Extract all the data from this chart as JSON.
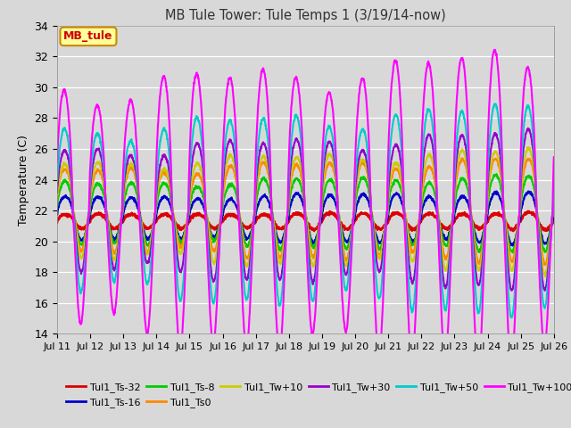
{
  "title": "MB Tule Tower: Tule Temps 1 (3/19/14-now)",
  "ylabel": "Temperature (C)",
  "ylim": [
    14,
    34
  ],
  "yticks": [
    14,
    16,
    18,
    20,
    22,
    24,
    26,
    28,
    30,
    32,
    34
  ],
  "x_labels": [
    "Jul 11",
    "Jul 12",
    "Jul 13",
    "Jul 14",
    "Jul 15",
    "Jul 16",
    "Jul 17",
    "Jul 18",
    "Jul 19",
    "Jul 20",
    "Jul 21",
    "Jul 22",
    "Jul 23",
    "Jul 24",
    "Jul 25",
    "Jul 26"
  ],
  "background_color": "#d8d8d8",
  "plot_bg_color": "#d8d8d8",
  "series": [
    {
      "label": "Tul1_Ts-32",
      "color": "#dd0000",
      "lw": 1.8,
      "base": 21.3,
      "amp": 0.5,
      "phase": 0.0
    },
    {
      "label": "Tul1_Ts-16",
      "color": "#0000cc",
      "lw": 1.5,
      "base": 21.5,
      "amp": 1.5,
      "phase": 0.05
    },
    {
      "label": "Tul1_Ts-8",
      "color": "#00cc00",
      "lw": 1.5,
      "base": 21.8,
      "amp": 2.2,
      "phase": 0.08
    },
    {
      "label": "Tul1_Ts0",
      "color": "#ff8800",
      "lw": 1.5,
      "base": 22.0,
      "amp": 3.0,
      "phase": 0.1
    },
    {
      "label": "Tul1_Tw+10",
      "color": "#cccc00",
      "lw": 1.5,
      "base": 22.0,
      "amp": 3.5,
      "phase": 0.12
    },
    {
      "label": "Tul1_Tw+30",
      "color": "#9900cc",
      "lw": 1.5,
      "base": 22.0,
      "amp": 4.5,
      "phase": 0.15
    },
    {
      "label": "Tul1_Tw+50",
      "color": "#00cccc",
      "lw": 1.5,
      "base": 22.0,
      "amp": 6.0,
      "phase": 0.18
    },
    {
      "label": "Tul1_Tw+100",
      "color": "#ff00ff",
      "lw": 1.5,
      "base": 22.0,
      "amp": 9.0,
      "phase": 0.22
    }
  ],
  "legend_text": "MB_tule",
  "legend_bg": "#ffff99",
  "legend_edge": "#cc8800"
}
